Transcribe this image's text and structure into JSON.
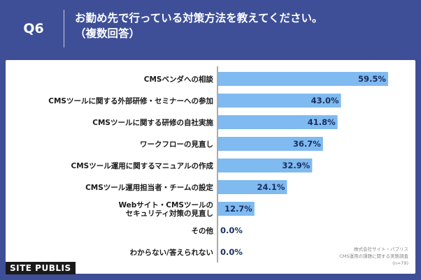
{
  "header": {
    "question_label": "Q6",
    "title_line1": "お勤め先で行っている対策方法を教えてください。",
    "title_line2": "（複数回答）"
  },
  "colors": {
    "background": "#3e4f97",
    "bar": "#7fbaf0",
    "value_text": "#1b2e5e",
    "axis_line": "#555555"
  },
  "chart_data": {
    "type": "bar",
    "orientation": "horizontal",
    "title": "お勤め先で行っている対策方法を教えてください。（複数回答）",
    "categories": [
      "CMSベンダへの相談",
      "CMSツールに関する外部研修・セミナーへの参加",
      "CMSツールに関する研修の自社実施",
      "ワークフローの見直し",
      "CMSツール運用に関するマニュアルの作成",
      "CMSツール運用担当者・チームの設定",
      "Webサイト・CMSツールの\nセキュリティ対策の見直し",
      "その他",
      "わからない/答えられない"
    ],
    "values": [
      59.5,
      43.0,
      41.8,
      36.7,
      32.9,
      24.1,
      12.7,
      0.0,
      0.0
    ],
    "value_labels": [
      "59.5%",
      "43.0%",
      "41.8%",
      "36.7%",
      "32.9%",
      "24.1%",
      "12.7%",
      "0.0%",
      "0.0%"
    ],
    "xlim": [
      0,
      60
    ],
    "unit": "%"
  },
  "source": {
    "line1": "株式会社サイト・パブリス",
    "line2": "CMS運用の課題に関する実態調査",
    "line3": "(n=79)"
  },
  "logo": {
    "text": "SITE PUBLIS"
  }
}
